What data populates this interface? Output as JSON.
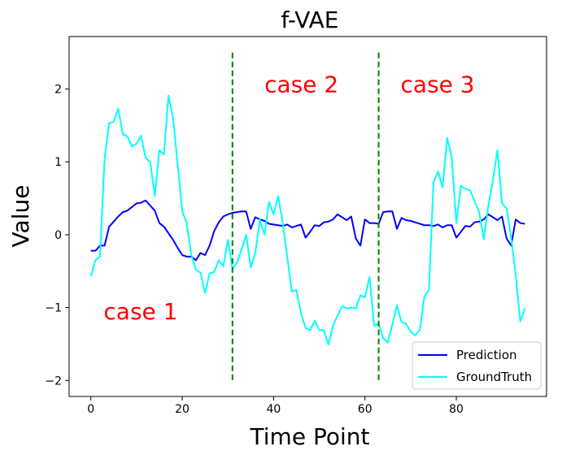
{
  "chart_data": {
    "type": "line",
    "title": "f-VAE",
    "xlabel": "Time Point",
    "ylabel": "Value",
    "xlim": [
      -4.75,
      99.75
    ],
    "ylim": [
      -2.22,
      2.72
    ],
    "xticks": [
      0,
      20,
      40,
      60,
      80
    ],
    "yticks": [
      -2,
      -1,
      0,
      1,
      2
    ],
    "ytick_labels": [
      "−2",
      "−1",
      "0",
      "1",
      "2"
    ],
    "grid": false,
    "legend_position": "lower-right",
    "series": [
      {
        "name": "Prediction",
        "color": "#0000ff",
        "x": [
          0,
          1,
          2,
          3,
          4,
          5,
          6,
          7,
          8,
          9,
          10,
          11,
          12,
          13,
          14,
          15,
          16,
          17,
          18,
          19,
          20,
          21,
          22,
          23,
          24,
          25,
          26,
          27,
          28,
          29,
          30,
          31,
          32,
          33,
          34,
          35,
          36,
          37,
          38,
          39,
          40,
          41,
          42,
          43,
          44,
          45,
          46,
          47,
          48,
          49,
          50,
          51,
          52,
          53,
          54,
          55,
          56,
          57,
          58,
          59,
          60,
          61,
          62,
          63,
          64,
          65,
          66,
          67,
          68,
          69,
          70,
          71,
          72,
          73,
          74,
          75,
          76,
          77,
          78,
          79,
          80,
          81,
          82,
          83,
          84,
          85,
          86,
          87,
          88,
          89,
          90,
          91,
          92,
          93,
          94,
          95
        ],
        "y": [
          -0.22,
          -0.22,
          -0.15,
          -0.15,
          0.11,
          0.18,
          0.25,
          0.31,
          0.33,
          0.38,
          0.43,
          0.44,
          0.47,
          0.4,
          0.33,
          0.16,
          0.11,
          0.02,
          -0.07,
          -0.18,
          -0.28,
          -0.3,
          -0.3,
          -0.35,
          -0.25,
          -0.28,
          -0.15,
          0.05,
          0.17,
          0.25,
          0.28,
          0.3,
          0.31,
          0.32,
          0.32,
          0.08,
          0.24,
          0.21,
          0.19,
          0.15,
          0.14,
          0.13,
          0.12,
          0.14,
          0.1,
          0.12,
          0.14,
          -0.04,
          0.04,
          0.13,
          0.12,
          0.17,
          0.18,
          0.21,
          0.28,
          0.24,
          0.2,
          0.25,
          -0.05,
          -0.15,
          0.21,
          0.16,
          0.16,
          0.15,
          0.31,
          0.32,
          0.32,
          0.08,
          0.23,
          0.2,
          0.19,
          0.17,
          0.15,
          0.13,
          0.13,
          0.12,
          0.14,
          0.1,
          0.13,
          0.13,
          -0.04,
          0.04,
          0.12,
          0.11,
          0.17,
          0.18,
          0.21,
          0.28,
          0.24,
          0.2,
          0.25,
          -0.05,
          -0.15,
          0.21,
          0.16,
          0.15
        ],
        "y_extra_note": ""
      },
      {
        "name": "GroundTruth",
        "color": "#00ffff",
        "x": [
          0,
          1,
          2,
          3,
          4,
          5,
          6,
          7,
          8,
          9,
          10,
          11,
          12,
          13,
          14,
          15,
          16,
          17,
          18,
          19,
          20,
          21,
          22,
          23,
          24,
          25,
          26,
          27,
          28,
          29,
          30,
          31,
          32,
          33,
          34,
          35,
          36,
          37,
          38,
          39,
          40,
          41,
          42,
          43,
          44,
          45,
          46,
          47,
          48,
          49,
          50,
          51,
          52,
          53,
          54,
          55,
          56,
          57,
          58,
          59,
          60,
          61,
          62,
          63,
          64,
          65,
          66,
          67,
          68,
          69,
          70,
          71,
          72,
          73,
          74,
          75,
          76,
          77,
          78,
          79,
          80,
          81,
          82,
          83,
          84,
          85,
          86,
          87,
          88,
          89,
          90,
          91,
          92,
          93,
          94,
          95
        ],
        "y": [
          -0.57,
          -0.35,
          -0.3,
          1.04,
          1.53,
          1.55,
          1.73,
          1.38,
          1.35,
          1.21,
          1.25,
          1.36,
          1.05,
          1.0,
          0.53,
          1.16,
          1.1,
          1.91,
          1.6,
          0.97,
          0.33,
          0.15,
          -0.28,
          -0.48,
          -0.52,
          -0.8,
          -0.53,
          -0.51,
          -0.35,
          -0.43,
          -0.07,
          -0.47,
          -0.38,
          -0.2,
          0.0,
          -0.45,
          -0.25,
          0.21,
          0.0,
          0.45,
          0.28,
          0.53,
          0.16,
          -0.31,
          -0.78,
          -0.76,
          -1.08,
          -1.28,
          -1.31,
          -1.18,
          -1.31,
          -1.31,
          -1.51,
          -1.25,
          -1.11,
          -0.98,
          -1.01,
          -1.0,
          -1.01,
          -0.83,
          -0.86,
          -0.58,
          -1.25,
          -1.22,
          -1.42,
          -1.48,
          -1.23,
          -0.97,
          -1.2,
          -1.22,
          -1.33,
          -1.38,
          -1.31,
          -0.85,
          -0.76,
          0.72,
          0.87,
          0.65,
          1.33,
          1.06,
          0.16,
          0.67,
          0.63,
          0.61,
          0.46,
          0.31,
          -0.06,
          0.39,
          0.74,
          1.16,
          0.43,
          0.36,
          -0.05,
          -0.55,
          -1.19,
          -1.01
        ]
      }
    ],
    "vlines": [
      {
        "x": 31,
        "y0": -2.0,
        "y1": 2.5,
        "color": "#008000",
        "style": "dashed"
      },
      {
        "x": 63,
        "y0": -2.0,
        "y1": 2.5,
        "color": "#008000",
        "style": "dashed"
      }
    ],
    "annotations": [
      {
        "text": "case 1",
        "x": 2.8,
        "y": -1.05,
        "color": "#ff0000"
      },
      {
        "text": "case 2",
        "x": 38.0,
        "y": 2.07,
        "color": "#ff0000"
      },
      {
        "text": "case 3",
        "x": 67.8,
        "y": 2.07,
        "color": "#ff0000"
      }
    ]
  }
}
